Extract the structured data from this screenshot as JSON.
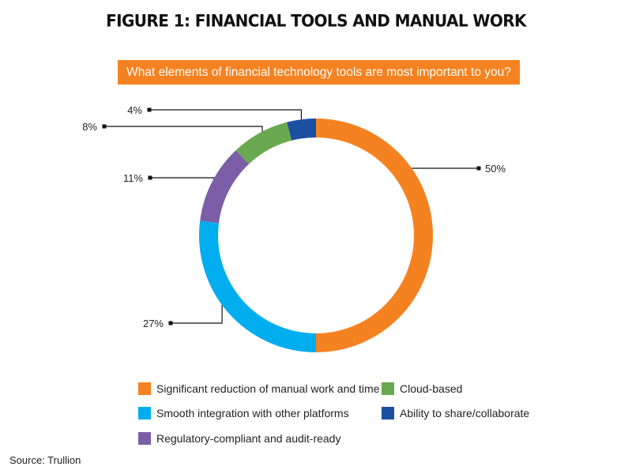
{
  "figure_title": "FIGURE 1: FINANCIAL TOOLS AND MANUAL WORK",
  "question": "What elements of financial technology tools are most important to you?",
  "source": "Source: Trullion",
  "chart_data": {
    "type": "pie",
    "variant": "donut",
    "title": "FIGURE 1: FINANCIAL TOOLS AND MANUAL WORK",
    "subtitle": "What elements of financial technology tools are most important to you?",
    "unit": "%",
    "start": "top, clockwise",
    "slices": [
      {
        "label": "Significant reduction of manual work and time",
        "value": 50,
        "display": "50%",
        "color": "#f58220"
      },
      {
        "label": "Smooth integration with other platforms",
        "value": 27,
        "display": "27%",
        "color": "#00aeef"
      },
      {
        "label": "Regulatory-compliant and audit-ready",
        "value": 11,
        "display": "11%",
        "color": "#7b5ea7"
      },
      {
        "label": "Cloud-based",
        "value": 8,
        "display": "8%",
        "color": "#6aa84f"
      },
      {
        "label": "Ability to share/collaborate",
        "value": 4,
        "display": "4%",
        "color": "#1b4fa0"
      }
    ],
    "legend_placement": "bottom"
  }
}
